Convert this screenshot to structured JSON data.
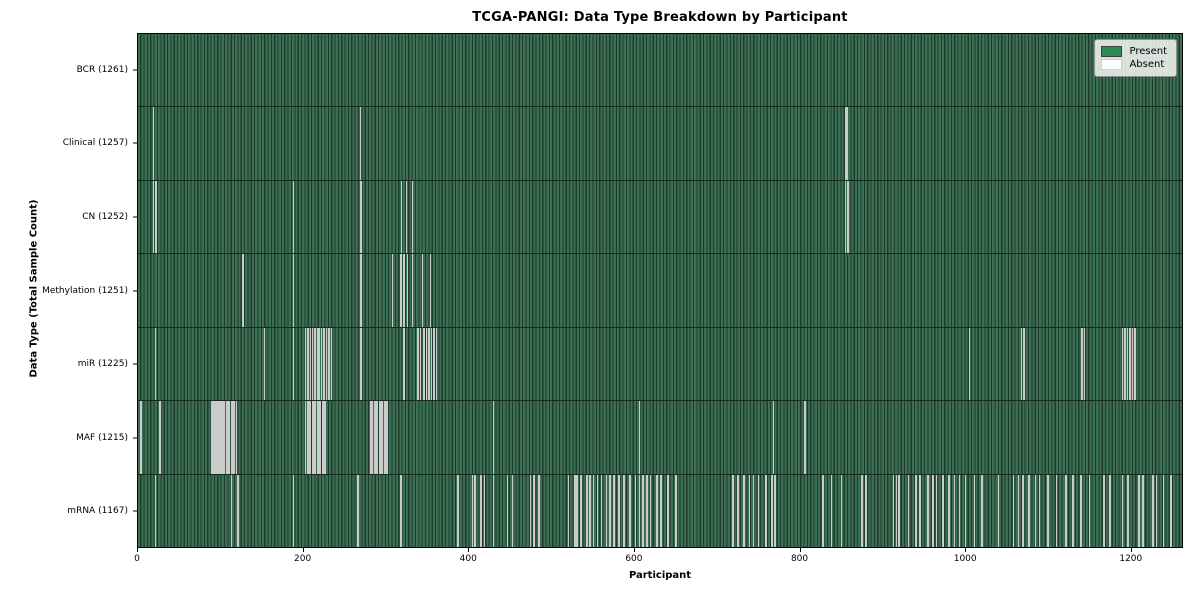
{
  "title": "TCGA-PANGI: Data Type Breakdown by Participant",
  "axes": {
    "x_label": "Participant",
    "y_label": "Data Type (Total Sample Count)"
  },
  "legend": {
    "present_label": "Present",
    "absent_label": "Absent"
  },
  "colors": {
    "present": "#2e8b57",
    "absent": "#ffffff",
    "stripe_light": "#3c6f54",
    "stripe_dark": "#1e3c2b",
    "absent_line": "#cbcbcb"
  },
  "chart_data": {
    "type": "heatmap",
    "title": "TCGA-PANGI: Data Type Breakdown by Participant",
    "xlabel": "Participant",
    "ylabel": "Data Type (Total Sample Count)",
    "x_min": 0,
    "x_max": 1263,
    "x_ticks": [
      0,
      200,
      400,
      600,
      800,
      1000,
      1200
    ],
    "total_participants": 1261,
    "legend_position": "upper right",
    "grid": false,
    "value_encoding": {
      "present": "green cell",
      "absent": "white gap"
    },
    "rows": [
      {
        "key": "BCR",
        "label": "BCR (1261)",
        "present_count": 1261,
        "absent_count": 0,
        "absent": []
      },
      {
        "key": "Clinical",
        "label": "Clinical (1257)",
        "present_count": 1257,
        "absent_count": 4,
        "absent": [
          18,
          268,
          855,
          857
        ]
      },
      {
        "key": "CN",
        "label": "CN (1252)",
        "present_count": 1252,
        "absent_count": 9,
        "absent": [
          18,
          21,
          187,
          269,
          318,
          324,
          331,
          855,
          858
        ]
      },
      {
        "key": "Methylation",
        "label": "Methylation (1251)",
        "present_count": 1251,
        "absent_count": 10,
        "absent": [
          126,
          187,
          269,
          307,
          317,
          321,
          325,
          331,
          343,
          353
        ]
      },
      {
        "key": "miR",
        "label": "miR (1225)",
        "present_count": 1225,
        "absent_count": 36,
        "absent": [
          20,
          152,
          187,
          202,
          205,
          208,
          210,
          213,
          216,
          218,
          221,
          224,
          227,
          230,
          233,
          269,
          321,
          338,
          341,
          345,
          348,
          351,
          354,
          357,
          360,
          1005,
          1068,
          1071,
          1141,
          1144,
          1190,
          1193,
          1196,
          1199,
          1202,
          1205
        ]
      },
      {
        "key": "MAF",
        "label": "MAF (1215)",
        "present_count": 1215,
        "absent_count": 46,
        "absent": [
          3,
          26,
          88,
          90,
          92,
          94,
          96,
          98,
          100,
          102,
          104,
          106,
          108,
          110,
          112,
          114,
          116,
          118,
          202,
          204,
          206,
          208,
          210,
          212,
          214,
          216,
          218,
          220,
          222,
          224,
          226,
          281,
          283,
          285,
          287,
          289,
          291,
          293,
          295,
          297,
          299,
          301,
          429,
          606,
          768,
          806
        ]
      },
      {
        "key": "mRNA",
        "label": "mRNA (1167)",
        "present_count": 1167,
        "absent_count": 94,
        "absent": [
          20,
          112,
          120,
          187,
          265,
          317,
          386,
          404,
          407,
          414,
          418,
          429,
          446,
          452,
          474,
          478,
          484,
          520,
          528,
          530,
          535,
          542,
          546,
          550,
          555,
          560,
          566,
          570,
          575,
          581,
          587,
          594,
          601,
          606,
          610,
          615,
          619,
          627,
          632,
          640,
          650,
          719,
          725,
          732,
          739,
          744,
          750,
          759,
          766,
          770,
          828,
          838,
          850,
          875,
          880,
          913,
          917,
          920,
          931,
          940,
          945,
          955,
          961,
          965,
          973,
          980,
          987,
          993,
          1000,
          1011,
          1020,
          1040,
          1058,
          1064,
          1070,
          1077,
          1085,
          1090,
          1100,
          1110,
          1122,
          1130,
          1140,
          1150,
          1168,
          1175,
          1190,
          1197,
          1210,
          1215,
          1227,
          1231,
          1240,
          1249
        ]
      }
    ]
  }
}
